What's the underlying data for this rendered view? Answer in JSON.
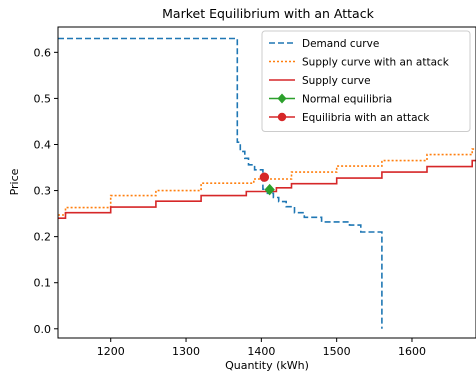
{
  "chart_data": {
    "type": "line",
    "title": "Market Equilibrium with an Attack",
    "xlabel": "Quantity (kWh)",
    "ylabel": "Price",
    "xlim": [
      1130,
      1685
    ],
    "ylim": [
      -0.02,
      0.655
    ],
    "xticks": [
      1200,
      1300,
      1400,
      1500,
      1600
    ],
    "yticks": [
      0.0,
      0.1,
      0.2,
      0.3,
      0.4,
      0.5,
      0.6
    ],
    "grid": false,
    "legend_position": "top-right",
    "series": [
      {
        "name": "Demand curve",
        "style": "dashed",
        "color": "#1f77b4",
        "x": [
          1130,
          1368,
          1368,
          1372,
          1372,
          1378,
          1378,
          1383,
          1383,
          1391,
          1391,
          1402,
          1402,
          1408,
          1408,
          1416,
          1416,
          1423,
          1423,
          1433,
          1433,
          1444,
          1444,
          1457,
          1457,
          1480,
          1480,
          1517,
          1517,
          1532,
          1532,
          1560,
          1560
        ],
        "y": [
          0.63,
          0.63,
          0.405,
          0.405,
          0.385,
          0.385,
          0.37,
          0.37,
          0.356,
          0.356,
          0.345,
          0.345,
          0.303,
          0.303,
          0.294,
          0.294,
          0.285,
          0.285,
          0.276,
          0.276,
          0.265,
          0.265,
          0.252,
          0.252,
          0.242,
          0.242,
          0.232,
          0.232,
          0.225,
          0.225,
          0.21,
          0.21,
          0.0
        ]
      },
      {
        "name": "Supply curve with an attack",
        "style": "dotted",
        "color": "#ff7f0e",
        "x": [
          1130,
          1140,
          1140,
          1200,
          1200,
          1260,
          1260,
          1320,
          1320,
          1390,
          1390,
          1440,
          1440,
          1500,
          1500,
          1560,
          1560,
          1620,
          1620,
          1680,
          1680,
          1685
        ],
        "y": [
          0.247,
          0.247,
          0.263,
          0.263,
          0.289,
          0.289,
          0.3,
          0.3,
          0.316,
          0.316,
          0.325,
          0.325,
          0.34,
          0.34,
          0.353,
          0.353,
          0.365,
          0.365,
          0.378,
          0.378,
          0.39,
          0.39
        ]
      },
      {
        "name": "Supply curve",
        "style": "solid",
        "color": "#d62728",
        "x": [
          1130,
          1140,
          1140,
          1200,
          1200,
          1260,
          1260,
          1320,
          1320,
          1380,
          1380,
          1420,
          1420,
          1440,
          1440,
          1500,
          1500,
          1560,
          1560,
          1620,
          1620,
          1680,
          1680,
          1685
        ],
        "y": [
          0.24,
          0.24,
          0.252,
          0.252,
          0.264,
          0.264,
          0.277,
          0.277,
          0.289,
          0.289,
          0.298,
          0.298,
          0.306,
          0.306,
          0.315,
          0.315,
          0.327,
          0.327,
          0.34,
          0.34,
          0.352,
          0.352,
          0.365,
          0.365
        ]
      }
    ],
    "points": [
      {
        "name": "Normal equilibria",
        "marker": "diamond",
        "color": "#2ca02c",
        "x": 1411,
        "y": 0.302
      },
      {
        "name": "Equilibria with an attack",
        "marker": "circle",
        "color": "#d62728",
        "x": 1404,
        "y": 0.329
      }
    ]
  }
}
